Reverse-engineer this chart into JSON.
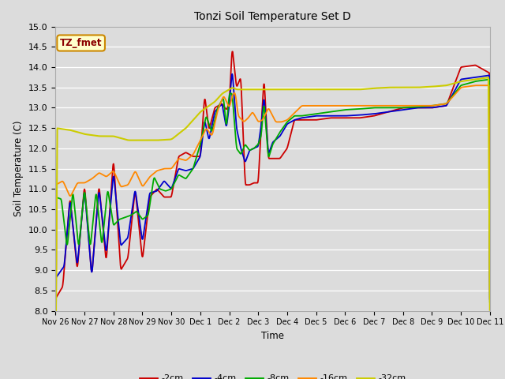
{
  "title": "Tonzi Soil Temperature Set D",
  "xlabel": "Time",
  "ylabel": "Soil Temperature (C)",
  "ylim": [
    8.0,
    15.0
  ],
  "yticks": [
    8.0,
    8.5,
    9.0,
    9.5,
    10.0,
    10.5,
    11.0,
    11.5,
    12.0,
    12.5,
    13.0,
    13.5,
    14.0,
    14.5,
    15.0
  ],
  "xtick_labels": [
    "Nov 26",
    "Nov 27",
    "Nov 28",
    "Nov 29",
    "Nov 30",
    "Dec 1",
    "Dec 2",
    "Dec 3",
    "Dec 4",
    "Dec 5",
    "Dec 6",
    "Dec 7",
    "Dec 8",
    "Dec 9",
    "Dec 10",
    "Dec 11"
  ],
  "colors": {
    "-2cm": "#cc0000",
    "-4cm": "#0000cc",
    "-8cm": "#00aa00",
    "-16cm": "#ff8800",
    "-32cm": "#cccc00"
  },
  "legend_label": "TZ_fmet",
  "bg_color": "#dcdcdc",
  "grid_color": "#ffffff",
  "fig_bg": "#dcdcdc"
}
